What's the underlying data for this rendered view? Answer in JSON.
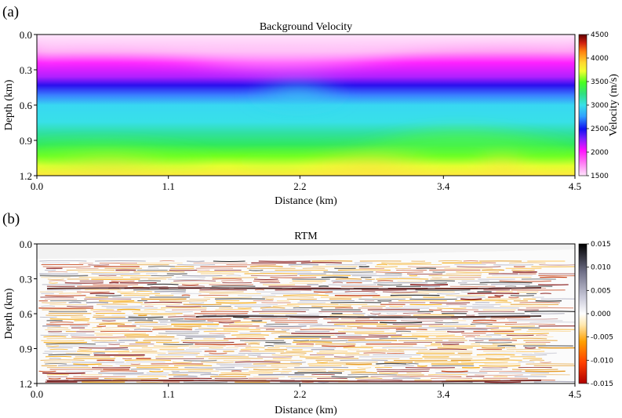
{
  "chart_data": [
    {
      "type": "heatmap",
      "panel_label": "(a)",
      "title": "Background Velocity",
      "xlabel": "Distance (km)",
      "ylabel": "Depth (km)",
      "x_ticks": [
        "0.0",
        "1.1",
        "2.2",
        "3.4",
        "4.5"
      ],
      "x_tick_values": [
        0.0,
        1.1,
        2.2,
        3.4,
        4.5
      ],
      "y_ticks": [
        "0.0",
        "0.3",
        "0.6",
        "0.9",
        "1.2"
      ],
      "y_tick_values": [
        0.0,
        0.3,
        0.6,
        0.9,
        1.2
      ],
      "xlim": [
        0.0,
        4.5
      ],
      "ylim": [
        0.0,
        1.2
      ],
      "colorbar": {
        "label": "Velocity (m/s)",
        "ticks": [
          "4500",
          "4000",
          "3500",
          "3000",
          "2500",
          "2000",
          "1500"
        ],
        "tick_values": [
          4500,
          4000,
          3500,
          3000,
          2500,
          2000,
          1500
        ],
        "range": [
          1500,
          4500
        ],
        "colors": [
          "#ffe6fb",
          "#ff10ff",
          "#8020ff",
          "#1010f0",
          "#30d8f0",
          "#38e0e8",
          "#30e860",
          "#48ff20",
          "#f0ff30",
          "#ffff40",
          "#ffb020",
          "#d02010",
          "#600000"
        ]
      }
    },
    {
      "type": "heatmap",
      "panel_label": "(b)",
      "title": "RTM",
      "xlabel": "Distance (km)",
      "ylabel": "Depth (km)",
      "x_ticks": [
        "0.0",
        "1.1",
        "2.2",
        "3.4",
        "4.5"
      ],
      "x_tick_values": [
        0.0,
        1.1,
        2.2,
        3.4,
        4.5
      ],
      "y_ticks": [
        "0.0",
        "0.3",
        "0.6",
        "0.9",
        "1.2"
      ],
      "y_tick_values": [
        0.0,
        0.3,
        0.6,
        0.9,
        1.2
      ],
      "xlim": [
        0.0,
        4.5
      ],
      "ylim": [
        0.0,
        1.2
      ],
      "colorbar": {
        "ticks": [
          "0.015",
          "0.010",
          "0.005",
          "0.000",
          "-0.005",
          "-0.010",
          "-0.015"
        ],
        "tick_values": [
          0.015,
          0.01,
          0.005,
          0.0,
          -0.005,
          -0.01,
          -0.015
        ],
        "range": [
          -0.015,
          0.015
        ],
        "colors": [
          "#b00000",
          "#ff4000",
          "#ffa000",
          "#ffe8b0",
          "#ffffff",
          "#c8c8d8",
          "#707088",
          "#000000"
        ]
      }
    }
  ]
}
